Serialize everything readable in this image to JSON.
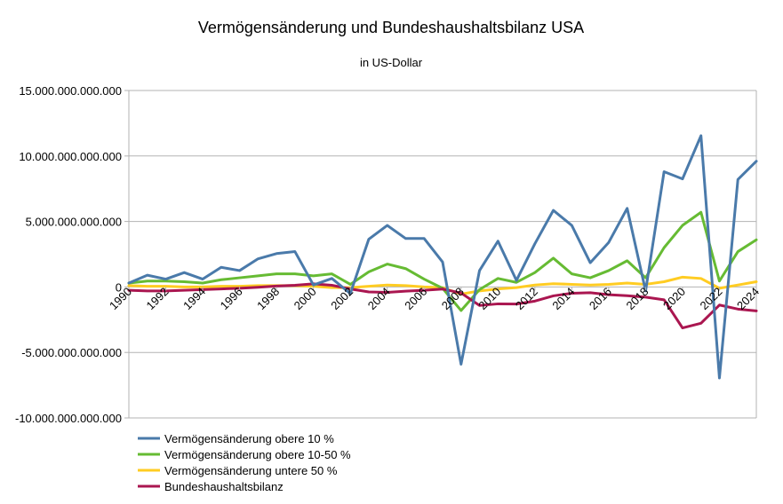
{
  "chart_data": {
    "type": "line",
    "title": "Vermögensänderung und Bundeshaushaltsbilanz USA",
    "subtitle": "in US-Dollar",
    "xlabel": "",
    "ylabel": "",
    "ylim": [
      -10000000000000,
      15000000000000
    ],
    "yticks": [
      15000000000000,
      10000000000000,
      5000000000000,
      0,
      -5000000000000,
      -10000000000000
    ],
    "ytick_labels": [
      "15.000.000.000.000",
      "10.000.000.000.000",
      "5.000.000.000.000",
      "0",
      "-5.000.000.000.000",
      "-10.000.000.000.000"
    ],
    "x": [
      1990,
      1991,
      1992,
      1993,
      1994,
      1995,
      1996,
      1997,
      1998,
      1999,
      2000,
      2001,
      2002,
      2003,
      2004,
      2005,
      2006,
      2007,
      2008,
      2009,
      2010,
      2011,
      2012,
      2013,
      2014,
      2015,
      2016,
      2017,
      2018,
      2019,
      2020,
      2021,
      2022,
      2023,
      2024
    ],
    "xlim": [
      1990,
      2024
    ],
    "xtick_labels": [
      "1990",
      "1992",
      "1994",
      "1996",
      "1998",
      "2000",
      "2002",
      "2004",
      "2006",
      "2008",
      "2010",
      "2012",
      "2014",
      "2016",
      "2018",
      "2020",
      "2022",
      "2024"
    ],
    "grid": "horizontal",
    "legend_position": "bottom-left",
    "series": [
      {
        "name": "Vermögensänderung obere 10 %",
        "color": "#4a7aaa",
        "values": [
          300000000000,
          900000000000,
          600000000000,
          1100000000000,
          600000000000,
          1500000000000,
          1250000000000,
          2150000000000,
          2550000000000,
          2700000000000,
          150000000000,
          650000000000,
          -500000000000,
          3650000000000,
          4700000000000,
          3700000000000,
          3700000000000,
          1900000000000,
          -5900000000000,
          1250000000000,
          3500000000000,
          500000000000,
          3300000000000,
          5850000000000,
          4700000000000,
          1850000000000,
          3400000000000,
          6000000000000,
          -300000000000,
          8800000000000,
          8250000000000,
          11550000000000,
          -6950000000000,
          8200000000000,
          9600000000000
        ]
      },
      {
        "name": "Vermögensänderung obere 10-50 %",
        "color": "#66bb33",
        "values": [
          300000000000,
          450000000000,
          450000000000,
          400000000000,
          300000000000,
          550000000000,
          700000000000,
          850000000000,
          1000000000000,
          1000000000000,
          850000000000,
          1000000000000,
          200000000000,
          1150000000000,
          1750000000000,
          1400000000000,
          600000000000,
          -100000000000,
          -1800000000000,
          -200000000000,
          650000000000,
          350000000000,
          1100000000000,
          2200000000000,
          1000000000000,
          700000000000,
          1250000000000,
          2000000000000,
          700000000000,
          3000000000000,
          4700000000000,
          5700000000000,
          450000000000,
          2700000000000,
          3600000000000
        ]
      },
      {
        "name": "Vermögensänderung untere 50 %",
        "color": "#ffcc22",
        "values": [
          100000000000,
          50000000000,
          50000000000,
          0,
          0,
          50000000000,
          50000000000,
          100000000000,
          100000000000,
          100000000000,
          50000000000,
          -50000000000,
          -50000000000,
          50000000000,
          150000000000,
          100000000000,
          0,
          -50000000000,
          -550000000000,
          -300000000000,
          -150000000000,
          -50000000000,
          150000000000,
          250000000000,
          200000000000,
          150000000000,
          200000000000,
          300000000000,
          200000000000,
          400000000000,
          750000000000,
          650000000000,
          -100000000000,
          150000000000,
          400000000000
        ]
      },
      {
        "name": "Bundeshaushaltsbilanz",
        "color": "#aa1650",
        "values": [
          -250000000000,
          -300000000000,
          -300000000000,
          -250000000000,
          -200000000000,
          -150000000000,
          -100000000000,
          -20000000000,
          70000000000,
          130000000000,
          240000000000,
          130000000000,
          -150000000000,
          -380000000000,
          -410000000000,
          -320000000000,
          -250000000000,
          -160000000000,
          -460000000000,
          -1410000000000,
          -1290000000000,
          -1300000000000,
          -1080000000000,
          -680000000000,
          -480000000000,
          -440000000000,
          -590000000000,
          -670000000000,
          -780000000000,
          -980000000000,
          -3130000000000,
          -2770000000000,
          -1380000000000,
          -1690000000000,
          -1830000000000
        ]
      }
    ]
  }
}
